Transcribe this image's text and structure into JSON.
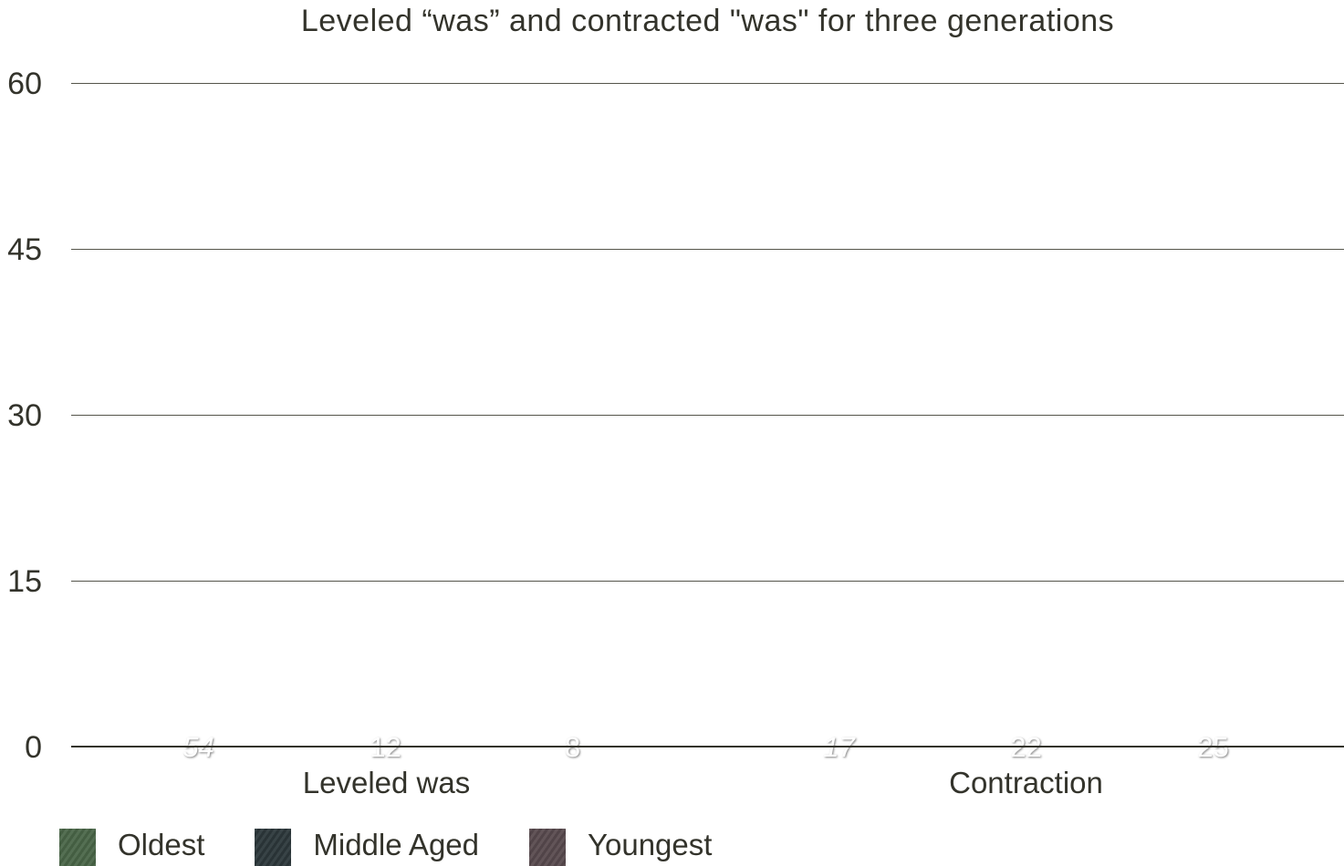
{
  "title": "Leveled “was” and contracted \"was\" for three generations",
  "chart_data": {
    "type": "bar",
    "categories": [
      "Leveled was",
      "Contraction"
    ],
    "series": [
      {
        "name": "Oldest",
        "color": "#4a6648",
        "values": [
          54,
          17
        ],
        "label_style": "italic"
      },
      {
        "name": "Middle Aged",
        "color": "#2c373b",
        "values": [
          12,
          22
        ],
        "label_style": "normal"
      },
      {
        "name": "Youngest",
        "color": "#584a4e",
        "values": [
          8,
          25
        ],
        "label_style": "normal"
      }
    ],
    "title": "Leveled “was” and contracted \"was\" for three generations",
    "xlabel": "",
    "ylabel": "",
    "ylim": [
      0,
      60
    ],
    "yticks": [
      0,
      15,
      30,
      45,
      60
    ],
    "grid": true,
    "legend_position": "bottom"
  }
}
